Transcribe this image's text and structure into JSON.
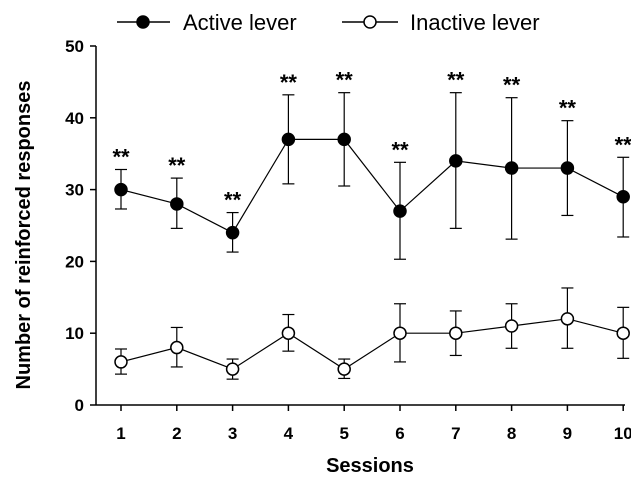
{
  "chart_data": {
    "type": "line",
    "title": "",
    "xlabel": "Sessions",
    "ylabel": "Number of reinforced responses",
    "x": [
      1,
      2,
      3,
      4,
      5,
      6,
      7,
      8,
      9,
      10
    ],
    "x_ticks": [
      "1",
      "2",
      "3",
      "4",
      "5",
      "6",
      "7",
      "8",
      "9",
      "10"
    ],
    "ylim": [
      0,
      50
    ],
    "y_ticks": [
      "0",
      "10",
      "20",
      "30",
      "40",
      "50"
    ],
    "grid": false,
    "legend_position": "top",
    "series": [
      {
        "name": "Active lever",
        "marker": "filled-circle",
        "values": [
          30,
          28,
          24,
          37,
          37,
          27,
          34,
          33,
          33,
          29
        ],
        "err_hi": [
          32.8,
          31.6,
          26.8,
          43.2,
          43.5,
          33.8,
          43.5,
          42.8,
          39.6,
          34.5
        ],
        "err_lo": [
          27.3,
          24.6,
          21.3,
          30.8,
          30.5,
          20.3,
          24.6,
          23.1,
          26.4,
          23.4
        ],
        "annotations": [
          "**",
          "**",
          "**",
          "**",
          "**",
          "**",
          "**",
          "**",
          "**",
          "**"
        ]
      },
      {
        "name": "Inactive lever",
        "marker": "open-circle",
        "values": [
          6,
          8,
          5,
          10,
          5,
          10,
          10,
          11,
          12,
          10
        ],
        "err_hi": [
          7.8,
          10.8,
          6.4,
          12.6,
          6.4,
          14.1,
          13.1,
          14.1,
          16.3,
          13.6
        ],
        "err_lo": [
          4.3,
          5.3,
          3.6,
          7.5,
          3.7,
          6.0,
          6.9,
          7.9,
          7.9,
          6.5
        ]
      }
    ],
    "colors": {
      "line": "#000000",
      "open_marker_fill": "#ffffff"
    }
  }
}
